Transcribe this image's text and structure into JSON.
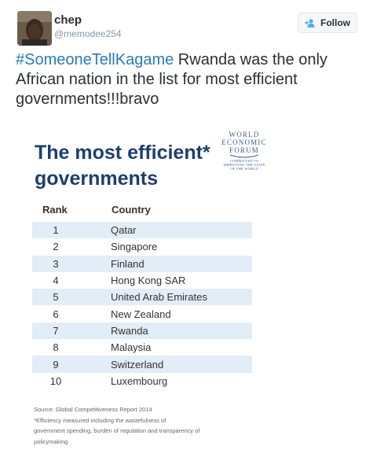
{
  "user": {
    "name": "chep",
    "handle": "@memodee254"
  },
  "follow": {
    "label": "Follow"
  },
  "tweet": {
    "hashtag": "#SomeoneTellKagame",
    "text": " Rwanda was the only African nation in the list for most efficient governments!!!bravo"
  },
  "card": {
    "title_line1": "The most efficient*",
    "title_line2": "governments",
    "logo": {
      "line1": "WORLD",
      "line2": "ECONOMIC",
      "line3": "FORUM",
      "tagline1": "COMMITTED TO",
      "tagline2": "IMPROVING THE STATE",
      "tagline3": "OF THE WORLD"
    },
    "header_rank": "Rank",
    "header_country": "Country",
    "rows": [
      {
        "rank": "1",
        "country": "Qatar"
      },
      {
        "rank": "2",
        "country": "Singapore"
      },
      {
        "rank": "3",
        "country": "Finland"
      },
      {
        "rank": "4",
        "country": "Hong Kong SAR"
      },
      {
        "rank": "5",
        "country": "United Arab Emirates"
      },
      {
        "rank": "6",
        "country": "New Zealand"
      },
      {
        "rank": "7",
        "country": "Rwanda"
      },
      {
        "rank": "8",
        "country": "Malaysia"
      },
      {
        "rank": "9",
        "country": "Switzerland"
      },
      {
        "rank": "10",
        "country": "Luxembourg"
      }
    ],
    "footnote": {
      "line1": "Source: Global Competitiveness Report 2014",
      "line2": "*Efficiency measured including the wastefulness of",
      "line3": "government spending, burden of regulation and transparency of",
      "line4": "policymaking"
    }
  },
  "colors": {
    "hashtag": "#2b7bb9",
    "title": "#1c3f6e",
    "row_stripe": "#e3edf7",
    "logo": "#3f5f8e"
  }
}
